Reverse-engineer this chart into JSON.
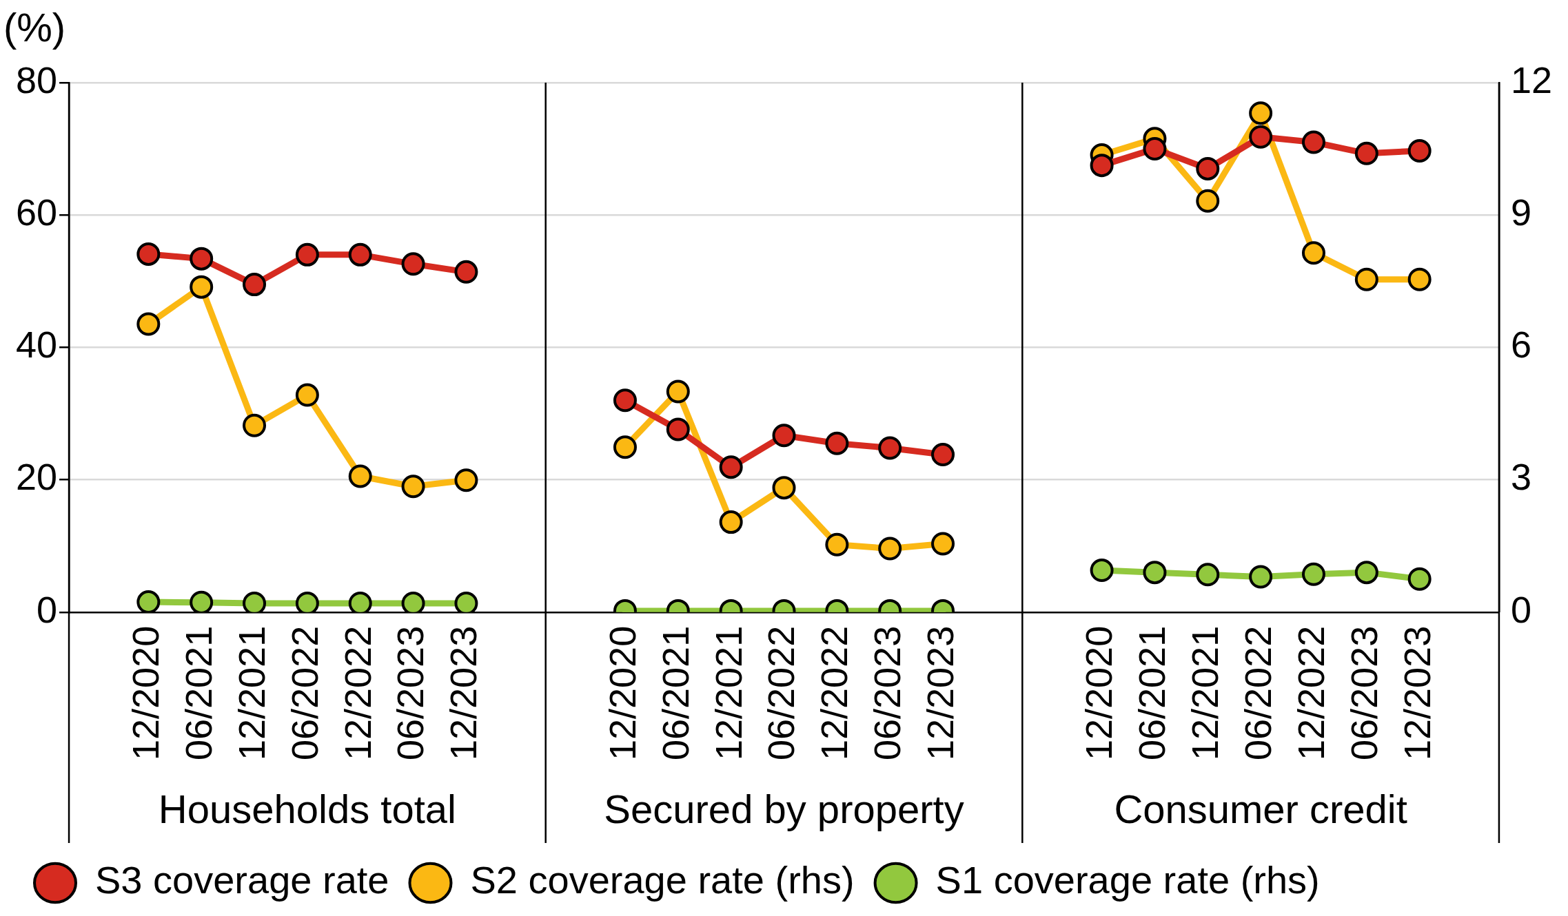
{
  "chart_data": {
    "type": "line",
    "ylabel": "(%)",
    "categories": [
      null,
      "12/2020",
      "06/2021",
      "12/2021",
      "06/2022",
      "12/2022",
      "06/2023",
      "12/2023",
      null,
      null,
      "12/2020",
      "06/2021",
      "12/2021",
      "06/2022",
      "12/2022",
      "06/2023",
      "12/2023",
      null,
      null,
      "12/2020",
      "06/2021",
      "12/2021",
      "06/2022",
      "12/2022",
      "06/2023",
      "12/2023",
      null
    ],
    "annotations": [
      "Households total",
      "Secured by property",
      "Consumer credit"
    ],
    "series": [
      {
        "name": "S3 coverage rate",
        "color": "#d62b20",
        "values": [
          null,
          54.1,
          53.4,
          49.5,
          54,
          54,
          52.6,
          51.4,
          null,
          null,
          32,
          27.6,
          21.9,
          26.7,
          25.5,
          24.8,
          23.8,
          null,
          null,
          67.5,
          70,
          67,
          71.8,
          71,
          69.3,
          69.7,
          null
        ]
      },
      {
        "name": "S2 coverage rate (rhs)",
        "color": "#fbb813",
        "axis": "y2",
        "values": [
          null,
          6.53,
          7.37,
          4.23,
          4.92,
          3.08,
          2.85,
          2.99,
          null,
          null,
          3.74,
          5.0,
          2.04,
          2.82,
          1.53,
          1.44,
          1.55,
          null,
          null,
          10.36,
          10.73,
          9.32,
          11.31,
          8.14,
          7.54,
          7.54,
          null
        ]
      },
      {
        "name": "S1 coverage rate (rhs)",
        "color": "#92c83e",
        "axis": "y2",
        "values": [
          null,
          0.23,
          0.22,
          0.2,
          0.2,
          0.2,
          0.2,
          0.2,
          null,
          null,
          0.03,
          0.03,
          0.03,
          0.03,
          0.03,
          0.03,
          0.03,
          null,
          null,
          0.95,
          0.9,
          0.85,
          0.8,
          0.86,
          0.9,
          0.75,
          null
        ]
      }
    ],
    "ylim": [
      0,
      80
    ],
    "yticks": [
      0,
      20,
      40,
      60,
      80
    ],
    "y2lim": [
      0,
      12
    ],
    "y2ticks": [
      0,
      3,
      6,
      9,
      12
    ],
    "grid": "y",
    "legend": "bottom",
    "marker": "circle",
    "line_style": "solid"
  }
}
